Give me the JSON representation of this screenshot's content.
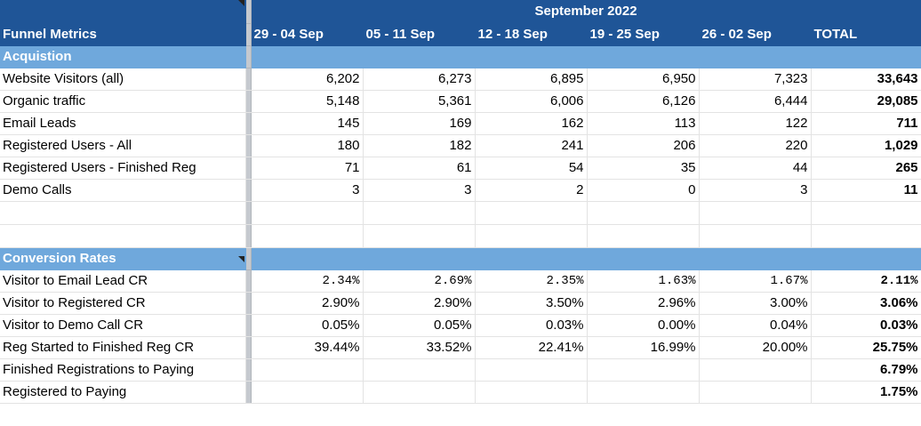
{
  "header": {
    "month": "September 2022",
    "title": "Funnel Metrics",
    "weeks": [
      "29 - 04 Sep",
      "05 - 11 Sep",
      "12 - 18 Sep",
      "19 - 25 Sep",
      "26 - 02 Sep"
    ],
    "total": "TOTAL"
  },
  "acquisition": {
    "title": "Acquistion",
    "rows": [
      {
        "label": "Website Visitors (all)",
        "values": [
          "6,202",
          "6,273",
          "6,895",
          "6,950",
          "7,323"
        ],
        "total": "33,643"
      },
      {
        "label": "Organic traffic",
        "values": [
          "5,148",
          "5,361",
          "6,006",
          "6,126",
          "6,444"
        ],
        "total": "29,085"
      },
      {
        "label": "Email Leads",
        "values": [
          "145",
          "169",
          "162",
          "113",
          "122"
        ],
        "total": "711"
      },
      {
        "label": "Registered Users - All",
        "values": [
          "180",
          "182",
          "241",
          "206",
          "220"
        ],
        "total": "1,029"
      },
      {
        "label": "Registered Users - Finished Reg",
        "values": [
          "71",
          "61",
          "54",
          "35",
          "44"
        ],
        "total": "265"
      },
      {
        "label": "Demo Calls",
        "values": [
          "3",
          "3",
          "2",
          "0",
          "3"
        ],
        "total": "11"
      }
    ]
  },
  "conversion": {
    "title": "Conversion Rates",
    "rows": [
      {
        "label": "Visitor to Email Lead CR",
        "values": [
          "2.34%",
          "2.69%",
          "2.35%",
          "1.63%",
          "1.67%"
        ],
        "total": "2.11%"
      },
      {
        "label": "Visitor to Registered CR",
        "values": [
          "2.90%",
          "2.90%",
          "3.50%",
          "2.96%",
          "3.00%"
        ],
        "total": "3.06%"
      },
      {
        "label": "Visitor to Demo Call CR",
        "values": [
          "0.05%",
          "0.05%",
          "0.03%",
          "0.00%",
          "0.04%"
        ],
        "total": "0.03%"
      },
      {
        "label": "Reg Started to Finished Reg CR",
        "values": [
          "39.44%",
          "33.52%",
          "22.41%",
          "16.99%",
          "20.00%"
        ],
        "total": "25.75%"
      },
      {
        "label": "Finished Registrations to Paying",
        "values": [
          "",
          "",
          "",
          "",
          ""
        ],
        "total": "6.79%"
      },
      {
        "label": "Registered to Paying",
        "values": [
          "",
          "",
          "",
          "",
          ""
        ],
        "total": "1.75%"
      }
    ]
  },
  "colors": {
    "header_bg": "#1f5597",
    "section_bg": "#6fa8dc"
  }
}
